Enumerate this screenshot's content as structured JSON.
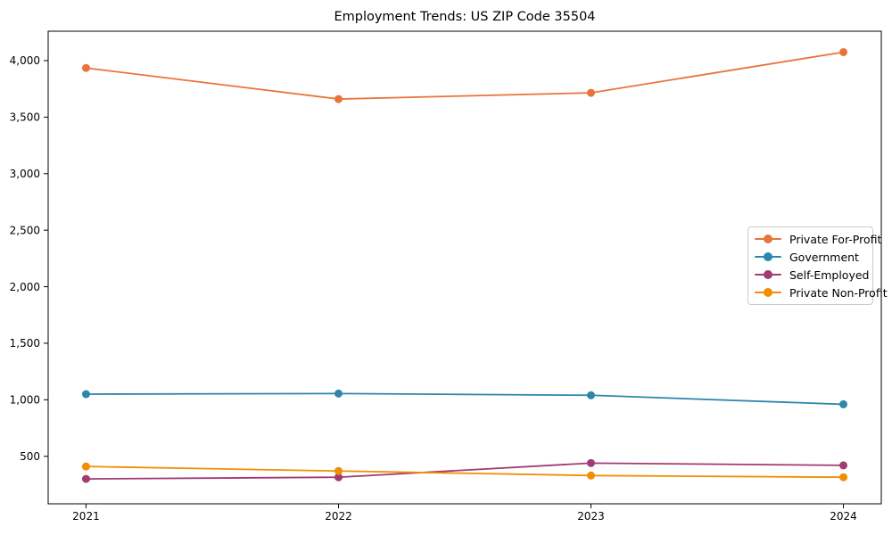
{
  "chart_data": {
    "type": "line",
    "title": "Employment Trends: US ZIP Code 35504",
    "xlabel": "",
    "ylabel": "",
    "x": [
      2021,
      2022,
      2023,
      2024
    ],
    "x_tick_labels": [
      "2021",
      "2022",
      "2023",
      "2024"
    ],
    "y_ticks": [
      500,
      1000,
      1500,
      2000,
      2500,
      3000,
      3500,
      4000
    ],
    "y_tick_labels": [
      "500",
      "1,000",
      "1,500",
      "2,000",
      "2,500",
      "3,000",
      "3,500",
      "4,000"
    ],
    "xlim": [
      2020.85,
      2024.15
    ],
    "ylim": [
      80,
      4260
    ],
    "grid": false,
    "legend_position": "center right",
    "series": [
      {
        "name": "Private For-Profit",
        "color": "#E8743B",
        "values": [
          3935,
          3660,
          3715,
          4075
        ]
      },
      {
        "name": "Government",
        "color": "#2E86AB",
        "values": [
          1050,
          1055,
          1040,
          960
        ]
      },
      {
        "name": "Self-Employed",
        "color": "#A23B72",
        "values": [
          300,
          315,
          440,
          420
        ]
      },
      {
        "name": "Private Non-Profit",
        "color": "#F18F01",
        "values": [
          410,
          370,
          330,
          315
        ]
      }
    ]
  }
}
